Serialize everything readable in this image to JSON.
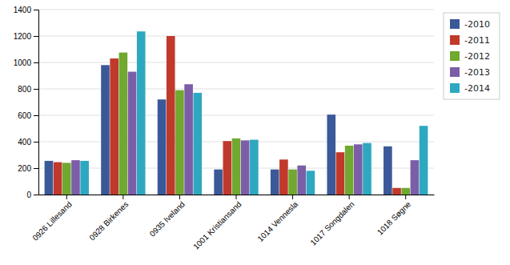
{
  "chart_data": {
    "type": "bar",
    "categories": [
      "0926 Lillesand",
      "0928 Birkenes",
      "0935 Iveland",
      "1001 Kristiansand",
      "1014 Vennesla",
      "1017 Songdalen",
      "1018 Søgne"
    ],
    "series": [
      {
        "name": "-2010",
        "color": "#3B5998",
        "values": [
          255,
          980,
          720,
          190,
          190,
          605,
          365
        ]
      },
      {
        "name": "-2011",
        "color": "#C0392B",
        "values": [
          245,
          1030,
          1200,
          405,
          265,
          320,
          50
        ]
      },
      {
        "name": "-2012",
        "color": "#70A830",
        "values": [
          240,
          1075,
          790,
          425,
          190,
          370,
          50
        ]
      },
      {
        "name": "-2013",
        "color": "#7B5EA7",
        "values": [
          260,
          930,
          835,
          410,
          220,
          380,
          260
        ]
      },
      {
        "name": "-2014",
        "color": "#2EA8C0",
        "values": [
          255,
          1235,
          770,
          415,
          180,
          390,
          520
        ]
      }
    ],
    "ylim": [
      0,
      1400
    ],
    "yticks": [
      0,
      200,
      400,
      600,
      800,
      1000,
      1200,
      1400
    ],
    "grid": true,
    "legend": "right"
  }
}
